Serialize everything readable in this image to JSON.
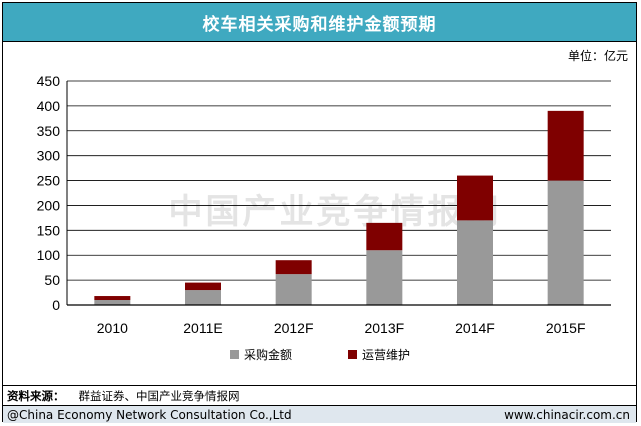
{
  "title": "校车相关采购和维护金额预期",
  "unit": "单位：亿元",
  "watermark": "中国产业竞争情报网",
  "source": {
    "label": "资料来源：",
    "text": "群益证券、中国产业竞争情报网"
  },
  "footer": {
    "copyright": "@China Economy Network Consultation Co.,Ltd",
    "website": "www.chinacir.com.cn"
  },
  "colors": {
    "title_bar": "#3fa9c0",
    "purchase": "#999999",
    "maintenance": "#7f0000",
    "footer_bg": "#dfe7ee"
  },
  "chart_data": {
    "type": "bar",
    "stacked": true,
    "categories": [
      "2010",
      "2011E",
      "2012F",
      "2013F",
      "2014F",
      "2015F"
    ],
    "series": [
      {
        "name": "采购金额",
        "values": [
          10,
          30,
          62,
          110,
          170,
          250
        ]
      },
      {
        "name": "运营维护",
        "values": [
          8,
          15,
          28,
          55,
          90,
          140
        ]
      }
    ],
    "ylim": [
      0,
      450
    ],
    "yticks": [
      0,
      50,
      100,
      150,
      200,
      250,
      300,
      350,
      400,
      450
    ],
    "grid": true,
    "legend": "bottom"
  }
}
